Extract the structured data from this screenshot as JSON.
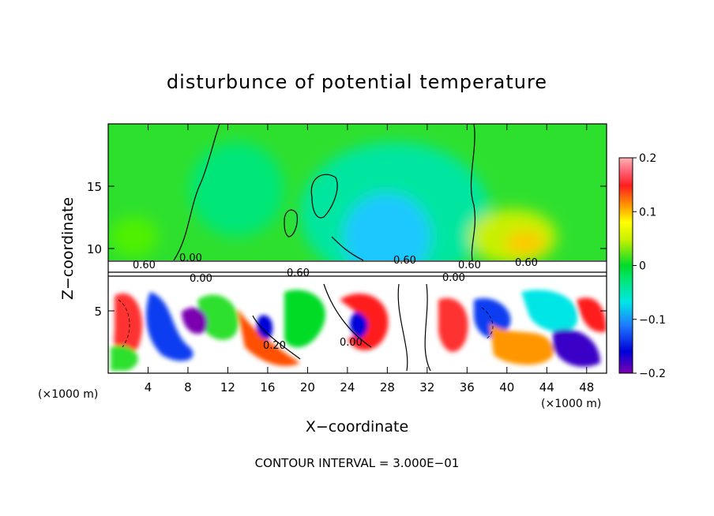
{
  "chart_data": {
    "type": "heatmap",
    "title": "disturbunce of potential temperature",
    "xlabel": "X−coordinate",
    "ylabel": "Z−coordinate",
    "x_unit_left": "(×1000 m)",
    "x_unit_right": "(×1000 m)",
    "xlim": [
      0,
      50
    ],
    "ylim": [
      0,
      20
    ],
    "x_ticks": [
      4,
      8,
      12,
      16,
      20,
      24,
      28,
      32,
      36,
      40,
      44,
      48
    ],
    "y_ticks": [
      5,
      10,
      15
    ],
    "colorbar": {
      "min": -0.2,
      "max": 0.2,
      "tick_values": [
        0.2,
        0.1,
        0,
        -0.1,
        -0.2
      ],
      "tick_labels": [
        "0.2",
        "0.1",
        "0",
        "−0.1",
        "−0.2"
      ],
      "colors": [
        "#7a00b0",
        "#3a00c8",
        "#0000d8",
        "#0a3cf0",
        "#1e78ff",
        "#1eb4ff",
        "#00e6e6",
        "#00f0b4",
        "#00e678",
        "#00dc28",
        "#50f000",
        "#c8f000",
        "#ffff00",
        "#ffc800",
        "#ff9600",
        "#ff5000",
        "#ff1e1e",
        "#ff0000",
        "#ff6478",
        "#ffb4b4"
      ]
    },
    "contour_labels": [
      "0.60",
      "0.00",
      "0.60",
      "0.00",
      "0.60",
      "0.60",
      "0.00",
      "0.60",
      "0.00",
      "0.20"
    ],
    "footer": "CONTOUR INTERVAL = 3.000E−01"
  }
}
